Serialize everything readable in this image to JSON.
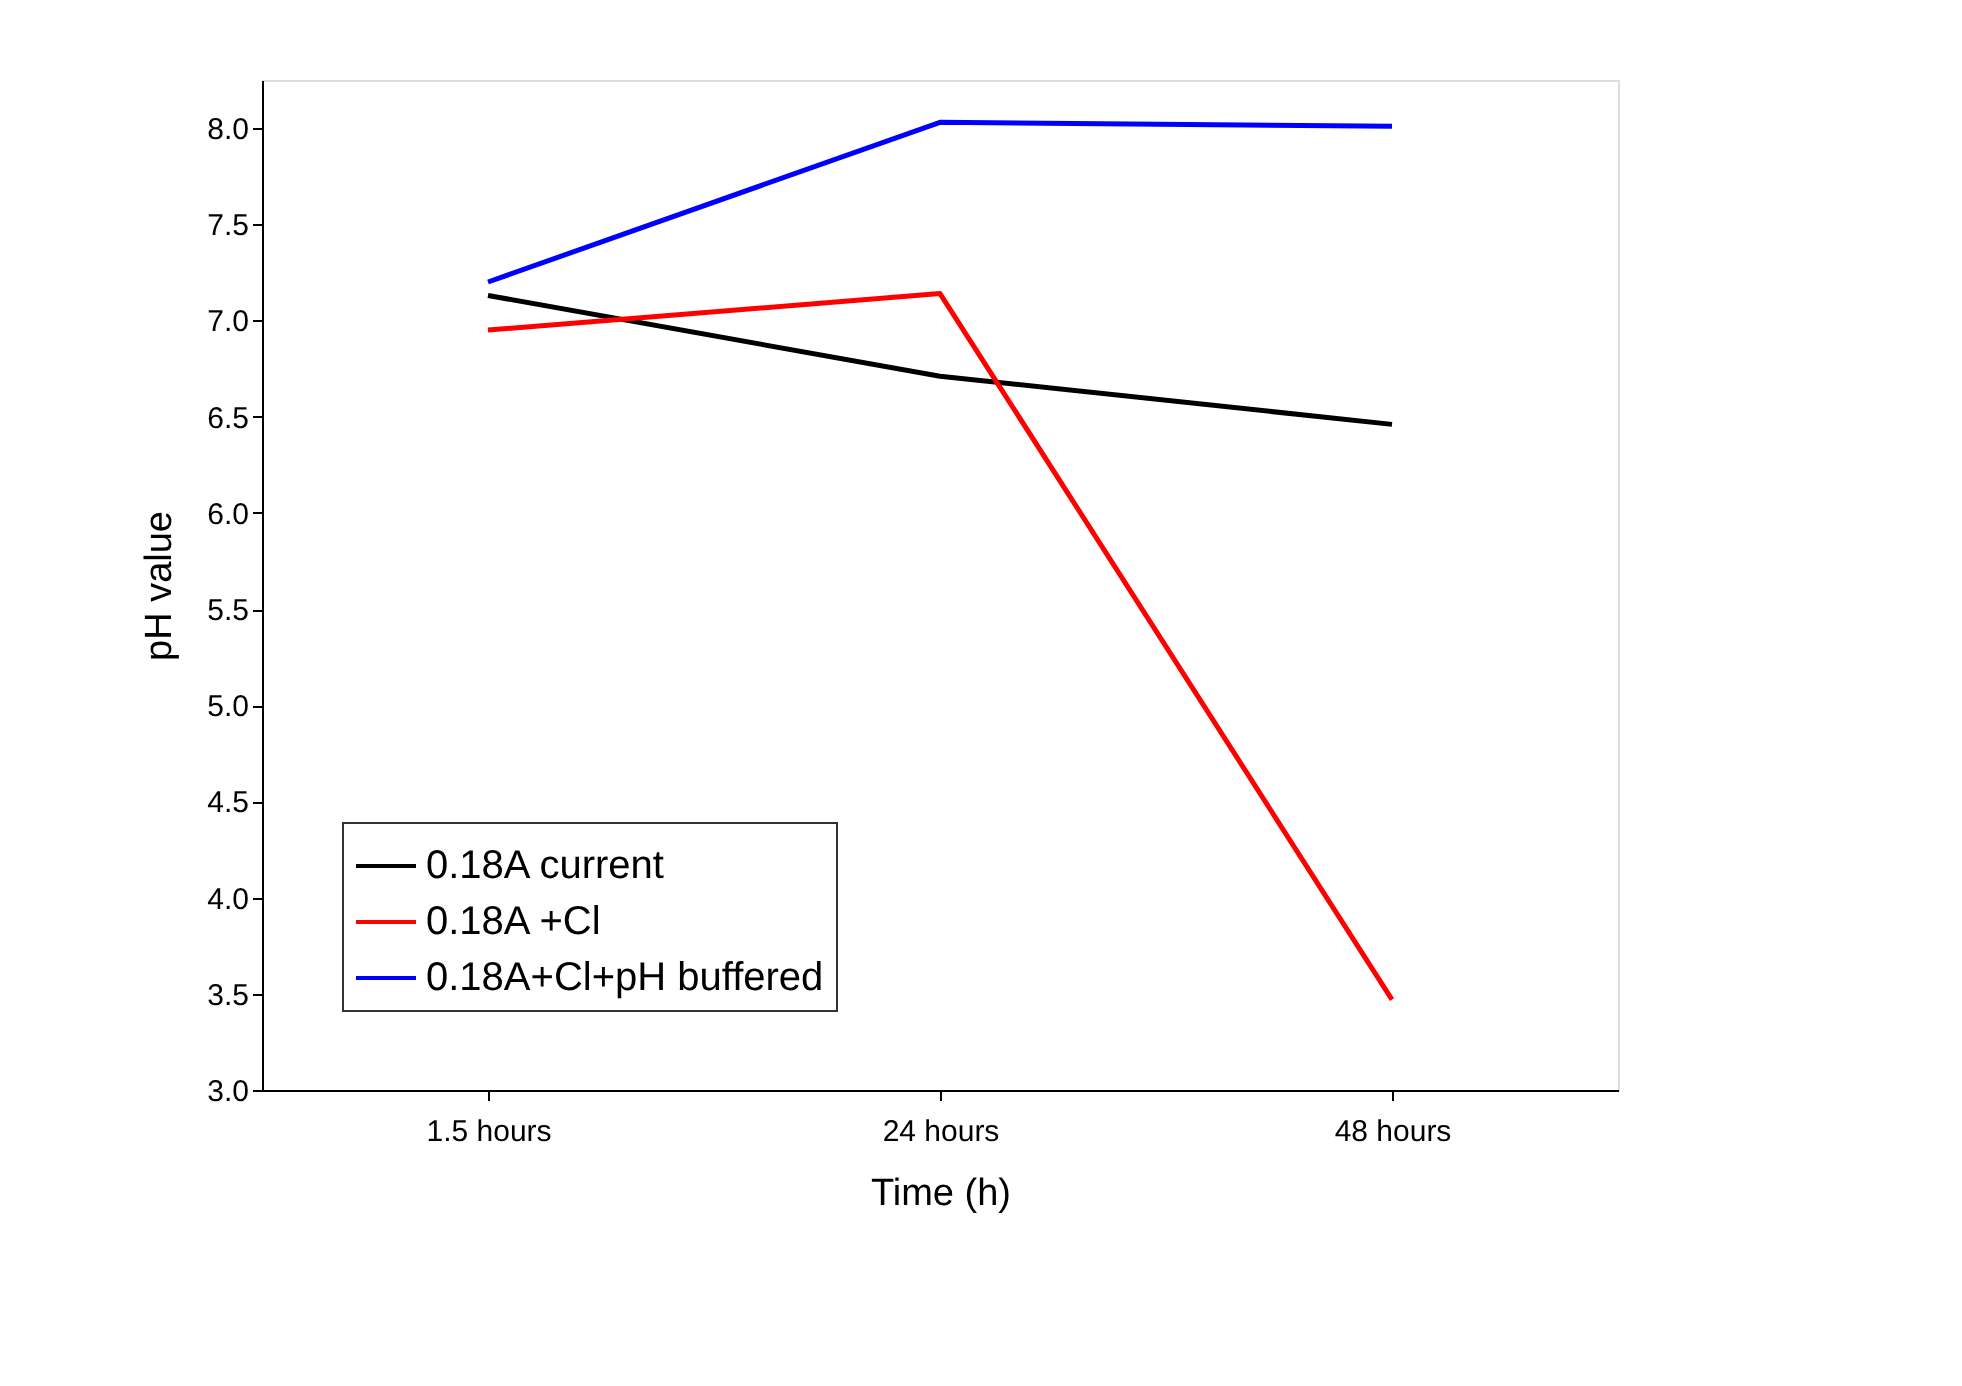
{
  "chart_data": {
    "type": "line",
    "xlabel": "Time (h)",
    "ylabel": "pH value",
    "categories": [
      "1.5 hours",
      "24 hours",
      "48 hours"
    ],
    "series": [
      {
        "name": "0.18A current",
        "color": "#000000",
        "values": [
          7.13,
          6.71,
          6.46
        ]
      },
      {
        "name": "0.18A +Cl",
        "color": "#ff0000",
        "values": [
          6.95,
          7.14,
          3.47
        ]
      },
      {
        "name": "0.18A+Cl+pH buffered",
        "color": "#0000ff",
        "values": [
          7.2,
          8.03,
          8.01
        ]
      }
    ],
    "ylim": [
      3.0,
      8.25
    ],
    "yticks": [
      {
        "value": 3.0,
        "label": "3.0"
      },
      {
        "value": 3.5,
        "label": "3.5"
      },
      {
        "value": 4.0,
        "label": "4.0"
      },
      {
        "value": 4.5,
        "label": "4.5"
      },
      {
        "value": 5.0,
        "label": "5.0"
      },
      {
        "value": 5.5,
        "label": "5.5"
      },
      {
        "value": 6.0,
        "label": "6.0"
      },
      {
        "value": 6.5,
        "label": "6.5"
      },
      {
        "value": 7.0,
        "label": "7.0"
      },
      {
        "value": 7.5,
        "label": "7.5"
      },
      {
        "value": 8.0,
        "label": "8.0"
      }
    ],
    "grid": false,
    "legend": "bottom left",
    "marker": "none",
    "line_style": "solid"
  }
}
